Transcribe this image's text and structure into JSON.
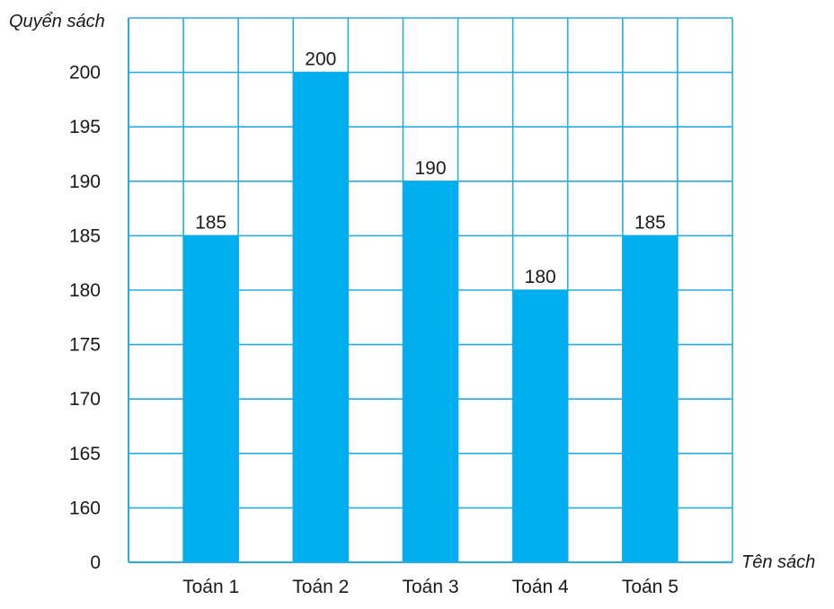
{
  "chart_data": {
    "type": "bar",
    "ylabel": "Quyển sách",
    "xlabel": "Tên sách",
    "categories": [
      "Toán 1",
      "Toán 2",
      "Toán 3",
      "Toán 4",
      "Toán 5"
    ],
    "values": [
      185,
      200,
      190,
      180,
      185
    ],
    "y_ticks": [
      0,
      160,
      165,
      170,
      175,
      180,
      185,
      190,
      195,
      200
    ],
    "y_axis_break": "0 to 160 compressed into one grid step",
    "grid": true,
    "bar_color": "#00aeef",
    "grid_color": "#29abe2",
    "data_labels": [
      "185",
      "200",
      "190",
      "180",
      "185"
    ]
  }
}
